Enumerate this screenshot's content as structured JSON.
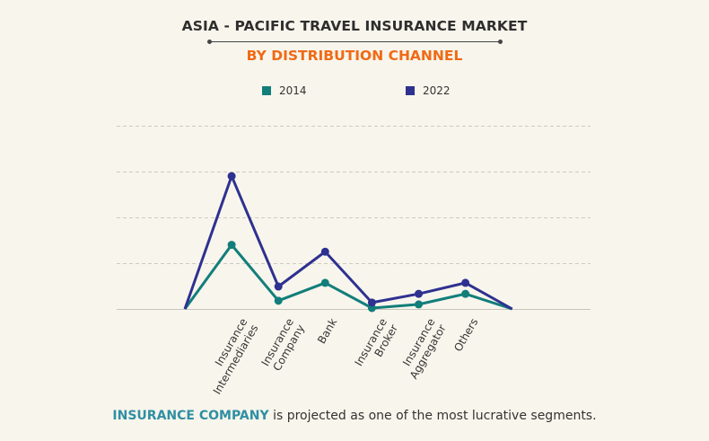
{
  "header": {
    "title": "ASIA - PACIFIC TRAVEL INSURANCE MARKET",
    "subtitle": "BY DISTRIBUTION CHANNEL"
  },
  "legend": [
    {
      "label": "2014",
      "color": "#127e7b"
    },
    {
      "label": "2022",
      "color": "#2e3190"
    }
  ],
  "caption": {
    "highlight": "INSURANCE COMPANY",
    "text": " is projected as one of the most lucrative segments."
  },
  "colors": {
    "accent_orange": "#f06a14",
    "highlight_teal": "#2f8fa3",
    "series_2014": "#127e7b",
    "series_2022": "#2e3190"
  },
  "chart_data": {
    "type": "line",
    "title": "ASIA - PACIFIC TRAVEL INSURANCE MARKET",
    "subtitle": "BY DISTRIBUTION CHANNEL",
    "xlabel": "",
    "ylabel": "",
    "categories": [
      "",
      "Insurance Intermediaries",
      "Insurance Company",
      "Bank",
      "Insurance Broker",
      "Insurance Aggregator",
      "Others",
      ""
    ],
    "series": [
      {
        "name": "2014",
        "values": [
          0,
          1.4,
          0.18,
          0.57,
          0.02,
          0.1,
          0.33,
          0
        ]
      },
      {
        "name": "2022",
        "values": [
          0,
          2.9,
          0.49,
          1.25,
          0.14,
          0.33,
          0.57,
          0
        ]
      }
    ],
    "ylim": [
      0,
      4
    ],
    "y_ticks_labeled": false,
    "grid": "horizontal dashed",
    "legend_position": "top"
  }
}
